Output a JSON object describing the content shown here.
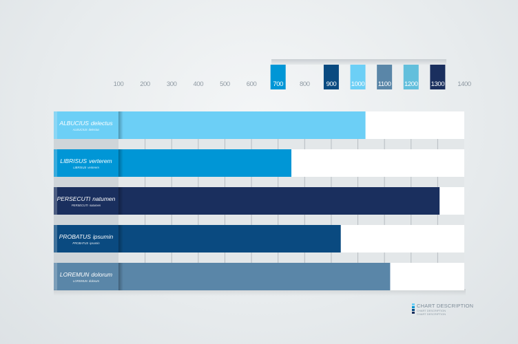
{
  "chart_data": {
    "type": "bar",
    "orientation": "horizontal",
    "title": "",
    "xlabel": "",
    "ylabel": "",
    "xlim": [
      0,
      1400
    ],
    "x_ticks": [
      "100",
      "200",
      "300",
      "400",
      "500",
      "600",
      "700",
      "800",
      "900",
      "1000",
      "1100",
      "1200",
      "1300",
      "1400"
    ],
    "highlighted_ticks": [
      {
        "label": "700",
        "color": "#0096d6"
      },
      {
        "label": "900",
        "color": "#0a4a80"
      },
      {
        "label": "1000",
        "color": "#6ccff6"
      },
      {
        "label": "1100",
        "color": "#5a86a8"
      },
      {
        "label": "1200",
        "color": "#62bfdc"
      },
      {
        "label": "1300",
        "color": "#1a2f5e"
      }
    ],
    "categories": [
      {
        "name": "ALBUCIUS",
        "desc": "delectus",
        "sub_name": "ALBUCIUS",
        "sub_desc": "delectus",
        "value": 1000,
        "color": "#6ccff6"
      },
      {
        "name": "LIBRISUS",
        "desc": "verterem",
        "sub_name": "LIBRISUS",
        "sub_desc": "verterem",
        "value": 700,
        "color": "#0096d6"
      },
      {
        "name": "PERSECUTI",
        "desc": "natumen",
        "sub_name": "PERSECUTI",
        "sub_desc": "natumen",
        "value": 1300,
        "color": "#1a2f5e"
      },
      {
        "name": "PROBATUS",
        "desc": "ipsumin",
        "sub_name": "PROBATUS",
        "sub_desc": "ipsumin",
        "value": 900,
        "color": "#0a4a80"
      },
      {
        "name": "LOREMUN",
        "desc": "dolorum",
        "sub_name": "LOREMUN",
        "sub_desc": "dolorum",
        "value": 1100,
        "color": "#5a86a8"
      }
    ],
    "grid": true,
    "legend": {
      "title": "CHART DESCRIPTION",
      "lines": [
        "CHART DESCRIPTION",
        "CHART DESCRIPTION"
      ],
      "colors": [
        "#6ccff6",
        "#0096d6",
        "#0a4a80",
        "#1a2f5e"
      ],
      "position": "bottom-right"
    }
  }
}
